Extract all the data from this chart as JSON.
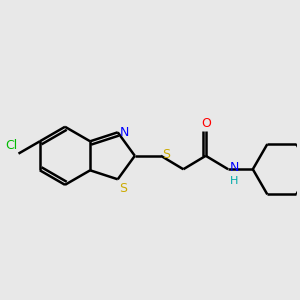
{
  "background_color": "#e8e8e8",
  "bond_color": "#000000",
  "bond_width": 1.8,
  "Cl_color": "#00bb00",
  "N_color": "#0000ff",
  "S_color": "#ccaa00",
  "O_color": "#ff0000",
  "H_color": "#00aaaa",
  "figsize": [
    3.0,
    3.0
  ],
  "dpi": 100,
  "xlim": [
    0.0,
    10.0
  ],
  "ylim": [
    0.5,
    7.5
  ]
}
